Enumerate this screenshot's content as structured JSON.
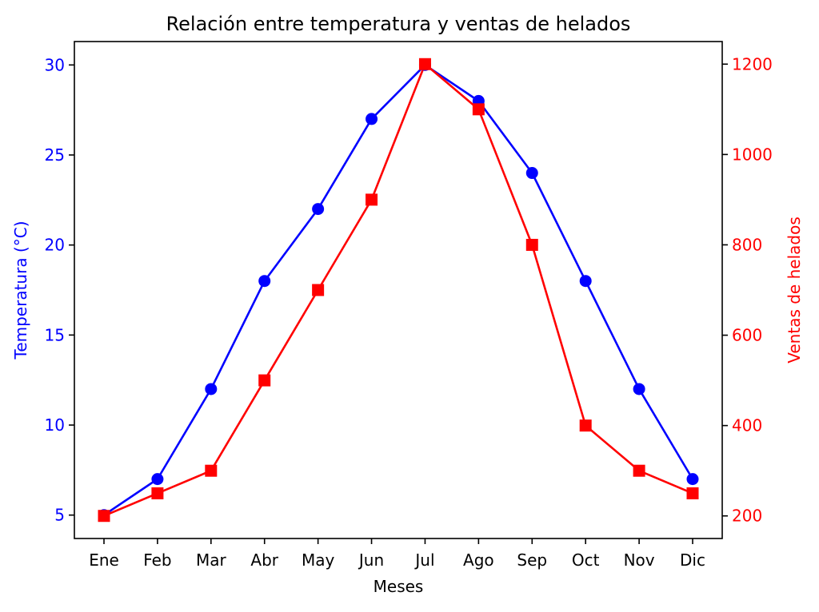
{
  "chart_data": {
    "type": "line",
    "title": "Relación entre temperatura y ventas de helados",
    "xlabel": "Meses",
    "categories": [
      "Ene",
      "Feb",
      "Mar",
      "Abr",
      "May",
      "Jun",
      "Jul",
      "Ago",
      "Sep",
      "Oct",
      "Nov",
      "Dic"
    ],
    "y_left": {
      "label": "Temperatura (°C)",
      "range": [
        3.7,
        31.3
      ],
      "ticks": [
        5,
        10,
        15,
        20,
        25,
        30
      ],
      "color": "#0000ff"
    },
    "y_right": {
      "label": "Ventas de helados",
      "range": [
        150,
        1250
      ],
      "ticks": [
        200,
        400,
        600,
        800,
        1000,
        1200
      ],
      "color": "#ff0000"
    },
    "series": [
      {
        "axis": "left",
        "color": "#0000ff",
        "marker": "circle",
        "values": [
          5,
          7,
          12,
          18,
          22,
          27,
          30,
          28,
          24,
          18,
          12,
          7
        ]
      },
      {
        "axis": "right",
        "color": "#ff0000",
        "marker": "square",
        "values": [
          200,
          250,
          300,
          500,
          700,
          900,
          1200,
          1100,
          800,
          400,
          300,
          250
        ]
      }
    ],
    "grid": false,
    "legend": "none"
  }
}
